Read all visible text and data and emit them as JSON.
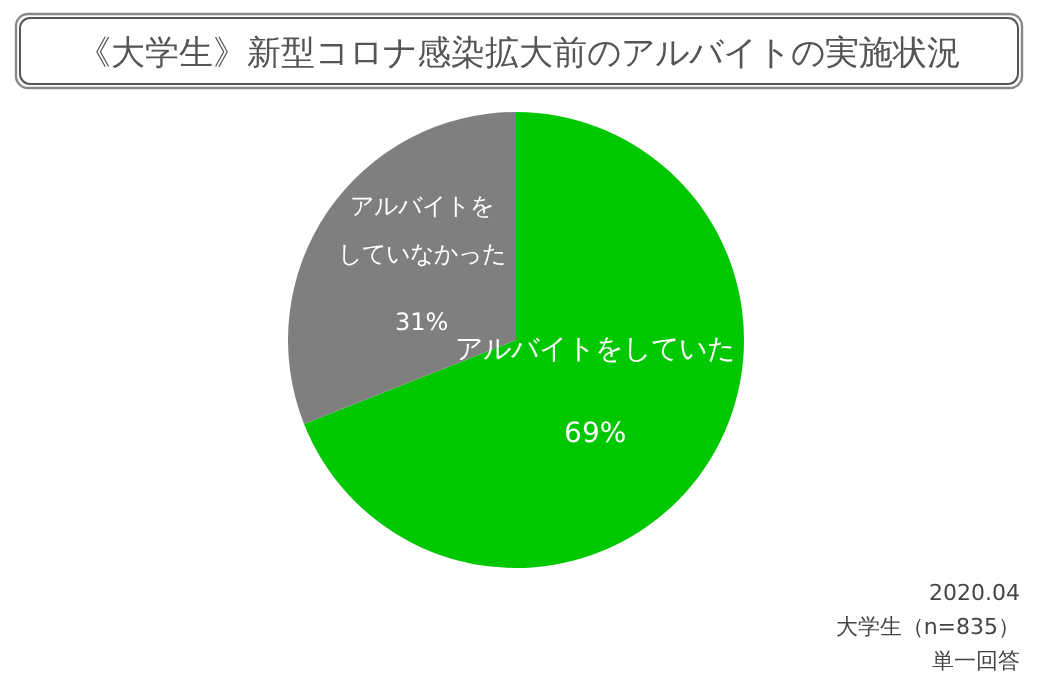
{
  "chart_data": {
    "type": "pie",
    "title": "《大学生》新型コロナ感染拡大前のアルバイトの実施状況",
    "categories": [
      "アルバイトをしていた",
      "アルバイトをしていなかった"
    ],
    "values": [
      69,
      31
    ],
    "colors": [
      "#00c800",
      "#7f7f7f"
    ],
    "value_labels": [
      "69%",
      "31%"
    ],
    "legend": false,
    "annotations": [
      "2020.04",
      "大学生（n=835）",
      "単一回答"
    ]
  }
}
